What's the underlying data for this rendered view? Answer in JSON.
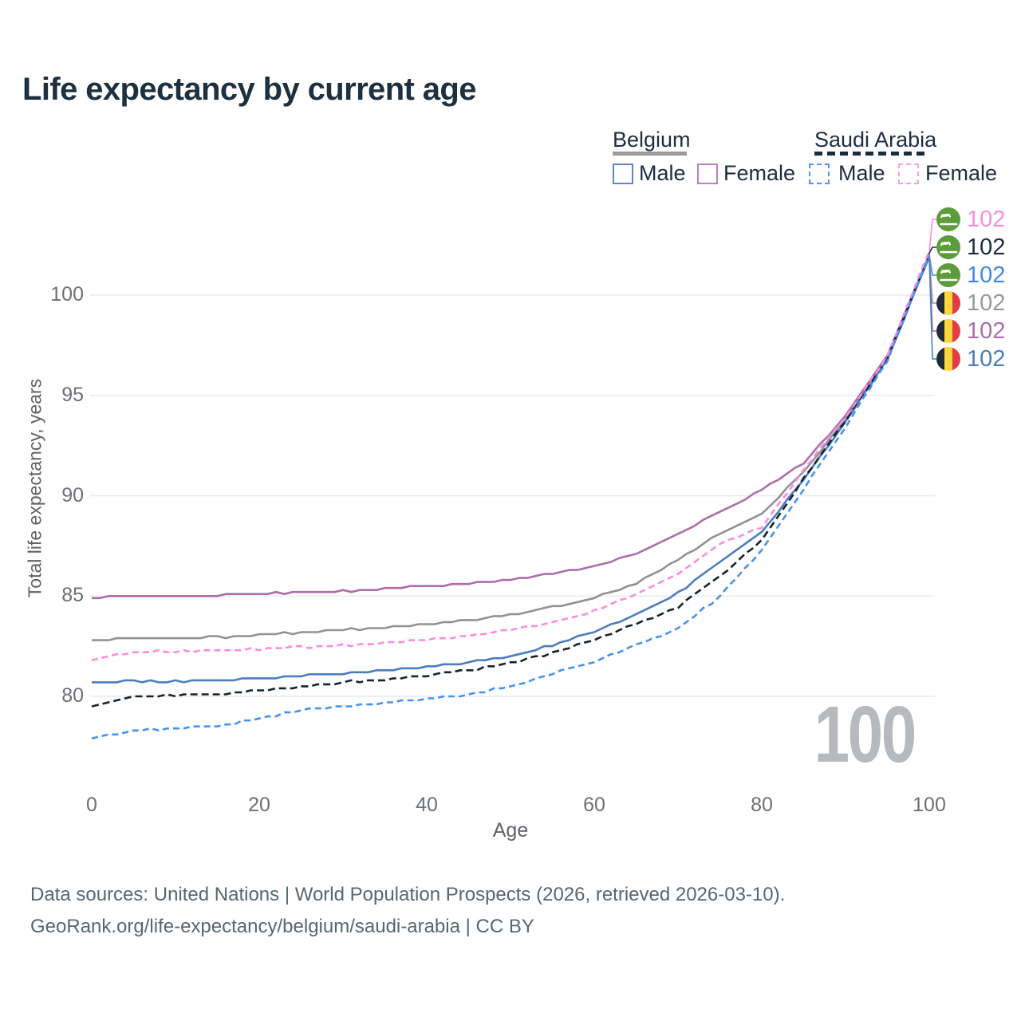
{
  "title": "Life expectancy by current age",
  "watermark": "100",
  "footer": {
    "line1": "Data sources: United Nations | World Population Prospects (2026, retrieved 2026-03-10).",
    "line2": "GeoRank.org/life-expectancy/belgium/saudi-arabia | CC BY"
  },
  "colors": {
    "grid": "#e9eaee",
    "title_text": "#1d3040",
    "tick_text": "#6d7074",
    "belgium_male": "#4c7dc0",
    "belgium_female": "#ae6dab",
    "belgium_total": "#909295",
    "saudi_male": "#4693f2",
    "saudi_female": "#fb8ce1",
    "saudi_total": "#17222e"
  },
  "legend": {
    "groups": [
      {
        "country": "Belgium",
        "underline": "solid",
        "items": [
          {
            "label": "Male"
          },
          {
            "label": "Female"
          }
        ]
      },
      {
        "country": "Saudi Arabia",
        "underline": "dashed",
        "items": [
          {
            "label": "Male"
          },
          {
            "label": "Female"
          }
        ]
      }
    ]
  },
  "chart_data": {
    "type": "line",
    "title": "Life expectancy by current age",
    "xlabel": "Age",
    "ylabel": "Total life expectancy, years",
    "xlim": [
      0,
      100
    ],
    "ylim": [
      77,
      103
    ],
    "xticks": [
      0,
      20,
      40,
      60,
      80,
      100
    ],
    "yticks": [
      80,
      85,
      90,
      95,
      100
    ],
    "grid": true,
    "x": [
      0,
      5,
      10,
      15,
      20,
      25,
      30,
      35,
      40,
      45,
      50,
      55,
      60,
      65,
      70,
      75,
      80,
      85,
      90,
      95,
      100
    ],
    "series": [
      {
        "id": "belgium-total",
        "name": "Belgium (both sexes)",
        "country": "Belgium",
        "sex": "total",
        "style": "solid",
        "color": "#909295",
        "values": [
          82.75,
          82.9,
          82.9,
          82.95,
          83.05,
          83.2,
          83.3,
          83.45,
          83.6,
          83.8,
          84.1,
          84.45,
          84.9,
          85.6,
          86.8,
          88.1,
          89.1,
          91.2,
          93.85,
          96.9,
          102.0
        ]
      },
      {
        "id": "belgium-female",
        "name": "Belgium Female",
        "country": "Belgium",
        "sex": "female",
        "style": "solid",
        "color": "#ae6dab",
        "values": [
          84.9,
          85.0,
          85.0,
          85.05,
          85.1,
          85.2,
          85.25,
          85.35,
          85.5,
          85.6,
          85.8,
          86.1,
          86.5,
          87.1,
          88.1,
          89.2,
          90.3,
          91.6,
          94.0,
          97.0,
          102.05
        ]
      },
      {
        "id": "belgium-male",
        "name": "Belgium Male",
        "country": "Belgium",
        "sex": "male",
        "style": "solid",
        "color": "#4c7dc0",
        "values": [
          80.65,
          80.75,
          80.75,
          80.8,
          80.9,
          81.0,
          81.15,
          81.3,
          81.5,
          81.7,
          82.0,
          82.55,
          83.25,
          84.1,
          85.15,
          86.7,
          88.2,
          90.8,
          93.7,
          96.8,
          101.9
        ]
      },
      {
        "id": "saudi-total",
        "name": "Saudi Arabia (both sexes)",
        "country": "Saudi Arabia",
        "sex": "total",
        "style": "dashed",
        "dash": "9 5",
        "color": "#17222e",
        "values": [
          79.5,
          80.0,
          80.05,
          80.1,
          80.3,
          80.5,
          80.7,
          80.85,
          81.05,
          81.3,
          81.65,
          82.15,
          82.8,
          83.6,
          84.45,
          86.0,
          87.8,
          90.85,
          93.75,
          96.85,
          102.1
        ]
      },
      {
        "id": "saudi-female",
        "name": "Saudi Arabia Female",
        "country": "Saudi Arabia",
        "sex": "female",
        "style": "dashed",
        "dash": "8 5",
        "color": "#fb8ce1",
        "values": [
          81.8,
          82.2,
          82.25,
          82.3,
          82.35,
          82.45,
          82.55,
          82.65,
          82.8,
          83.0,
          83.3,
          83.7,
          84.25,
          85.1,
          86.1,
          87.6,
          88.4,
          91.3,
          93.9,
          96.95,
          102.2
        ]
      },
      {
        "id": "saudi-male",
        "name": "Saudi Arabia Male",
        "country": "Saudi Arabia",
        "sex": "male",
        "style": "dashed",
        "dash": "8 5",
        "color": "#4693f2",
        "values": [
          77.9,
          78.3,
          78.4,
          78.5,
          78.9,
          79.3,
          79.5,
          79.65,
          79.85,
          80.1,
          80.5,
          81.1,
          81.75,
          82.6,
          83.35,
          85.0,
          87.3,
          90.3,
          93.45,
          96.7,
          102.0
        ]
      }
    ],
    "end_labels": [
      {
        "series": "saudi-female",
        "flag": "saudi-arabia",
        "value": "102",
        "color": "#fb8ce1"
      },
      {
        "series": "saudi-total",
        "flag": "saudi-arabia",
        "value": "102",
        "color": "#1d2c3e"
      },
      {
        "series": "saudi-male",
        "flag": "saudi-arabia",
        "value": "102",
        "color": "#4186e9"
      },
      {
        "series": "belgium-total",
        "flag": "belgium",
        "value": "102",
        "color": "#97999c"
      },
      {
        "series": "belgium-female",
        "flag": "belgium",
        "value": "102",
        "color": "#ae6dab"
      },
      {
        "series": "belgium-male",
        "flag": "belgium",
        "value": "102",
        "color": "#4b7cc2"
      }
    ]
  }
}
